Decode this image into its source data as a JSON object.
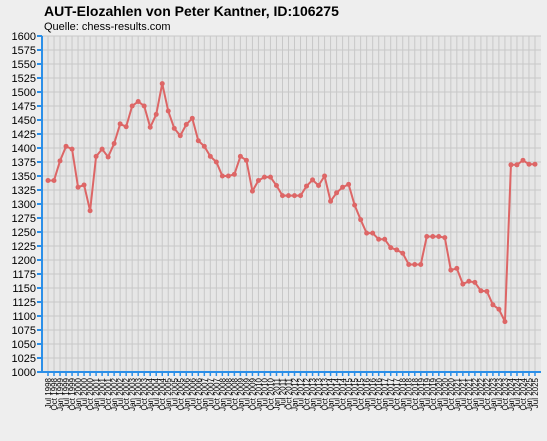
{
  "chart_data": {
    "type": "line",
    "title": "AUT-Elozahlen von Peter Kantner, ID:106275",
    "subtitle": "Quelle: chess-results.com",
    "categories": [
      "Jul 1998",
      "Oct 1998",
      "Jan 1999",
      "Jul 1999",
      "Oct 1999",
      "Jan 2000",
      "Jul 2000",
      "Oct 2000",
      "Jan 2001",
      "Jul 2001",
      "Oct 2001",
      "Jan 2002",
      "Jul 2002",
      "Oct 2002",
      "Jan 2003",
      "Jul 2003",
      "Oct 2003",
      "Jan 2004",
      "Jul 2004",
      "Oct 2004",
      "Jan 2005",
      "Jul 2005",
      "Oct 2005",
      "Jan 2006",
      "Jul 2006",
      "Oct 2006",
      "Jan 2007",
      "Jul 2007",
      "Oct 2007",
      "Jan 2008",
      "Jul 2008",
      "Oct 2008",
      "Jan 2009",
      "Jul 2009",
      "Oct 2009",
      "Jan 2010",
      "Jul 2010",
      "Oct 2010",
      "Jan 2011",
      "Jul 2011",
      "Oct 2011",
      "Jan 2012",
      "Jul 2012",
      "Oct 2012",
      "Jan 2013",
      "Jul 2013",
      "Oct 2013",
      "Jan 2014",
      "Jul 2014",
      "Oct 2014",
      "Jan 2015",
      "Jul 2015",
      "Oct 2015",
      "Jan 2016",
      "Jul 2016",
      "Oct 2016",
      "Jan 2017",
      "Jul 2017",
      "Oct 2017",
      "Jan 2018",
      "Jul 2018",
      "Oct 2018",
      "Jan 2019",
      "Jul 2019",
      "Oct 2019",
      "Jan 2020",
      "Jul 2020",
      "Oct 2020",
      "Jan 2021",
      "Jul 2021",
      "Oct 2021",
      "Jan 2022",
      "Jul 2022",
      "Oct 2022",
      "Jan 2023",
      "Jul 2023",
      "Oct 2023",
      "Jan 2024",
      "Jul 2024",
      "Oct 2024",
      "Jan 2025",
      "Jul 2025"
    ],
    "values": [
      1342,
      1342,
      1377,
      1403,
      1398,
      1330,
      1334,
      1288,
      1385,
      1398,
      1384,
      1408,
      1443,
      1438,
      1475,
      1483,
      1475,
      1437,
      1460,
      1515,
      1466,
      1435,
      1422,
      1442,
      1453,
      1413,
      1403,
      1385,
      1375,
      1350,
      1350,
      1353,
      1385,
      1378,
      1323,
      1342,
      1348,
      1348,
      1333,
      1315,
      1315,
      1315,
      1315,
      1332,
      1343,
      1333,
      1350,
      1305,
      1320,
      1330,
      1335,
      1298,
      1272,
      1248,
      1248,
      1237,
      1237,
      1222,
      1218,
      1212,
      1192,
      1192,
      1192,
      1242,
      1242,
      1242,
      1240,
      1182,
      1185,
      1157,
      1162,
      1160,
      1145,
      1144,
      1120,
      1112,
      1090,
      1370,
      1370,
      1378,
      1371,
      1371
    ],
    "color": "#dd6666",
    "axis_color": "#2b8fe8",
    "ylim": [
      1000,
      1600
    ],
    "yticks": [
      1000,
      1025,
      1050,
      1075,
      1100,
      1125,
      1150,
      1175,
      1200,
      1225,
      1250,
      1275,
      1300,
      1325,
      1350,
      1375,
      1400,
      1425,
      1450,
      1475,
      1500,
      1525,
      1550,
      1575,
      1600
    ],
    "grid": true
  }
}
